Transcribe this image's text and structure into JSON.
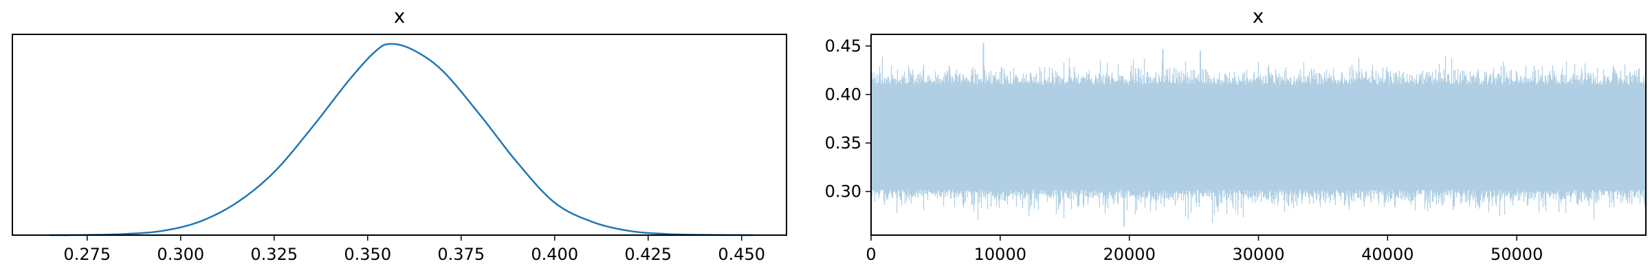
{
  "chart_data": [
    {
      "type": "line",
      "title": "x",
      "xlabel": "",
      "ylabel": "",
      "xlim": [
        0.255,
        0.462
      ],
      "ylim": [
        0,
        1.05
      ],
      "grid": false,
      "x_ticks": [
        "0.275",
        "0.300",
        "0.325",
        "0.350",
        "0.375",
        "0.400",
        "0.425",
        "0.450"
      ],
      "y_ticks": [],
      "color": "#1f77b4",
      "series": [
        {
          "values": [
            [
              0.265,
              0.0
            ],
            [
              0.275,
              0.001
            ],
            [
              0.285,
              0.006
            ],
            [
              0.295,
              0.022
            ],
            [
              0.305,
              0.07
            ],
            [
              0.315,
              0.17
            ],
            [
              0.325,
              0.33
            ],
            [
              0.335,
              0.56
            ],
            [
              0.345,
              0.81
            ],
            [
              0.352,
              0.96
            ],
            [
              0.356,
              1.0
            ],
            [
              0.362,
              0.97
            ],
            [
              0.37,
              0.86
            ],
            [
              0.38,
              0.63
            ],
            [
              0.39,
              0.38
            ],
            [
              0.4,
              0.17
            ],
            [
              0.41,
              0.07
            ],
            [
              0.42,
              0.022
            ],
            [
              0.43,
              0.006
            ],
            [
              0.44,
              0.0015
            ],
            [
              0.453,
              0.0
            ]
          ]
        }
      ]
    },
    {
      "type": "line",
      "title": "x",
      "xlabel": "",
      "ylabel": "",
      "xlim": [
        0,
        60000
      ],
      "ylim": [
        0.255,
        0.462
      ],
      "grid": false,
      "x_ticks": [
        "0",
        "10000",
        "20000",
        "30000",
        "40000",
        "50000"
      ],
      "y_ticks": [
        "0.30",
        "0.35",
        "0.40",
        "0.45"
      ],
      "color": "#b0cfe4",
      "series": [
        {
          "n_samples": 60000,
          "mean": 0.356,
          "band": [
            0.302,
            0.41
          ],
          "extremes": [
            [
              8700,
              0.453
            ],
            [
              19600,
              0.264
            ],
            [
              22600,
              0.447
            ],
            [
              25500,
              0.445
            ]
          ]
        }
      ]
    }
  ]
}
